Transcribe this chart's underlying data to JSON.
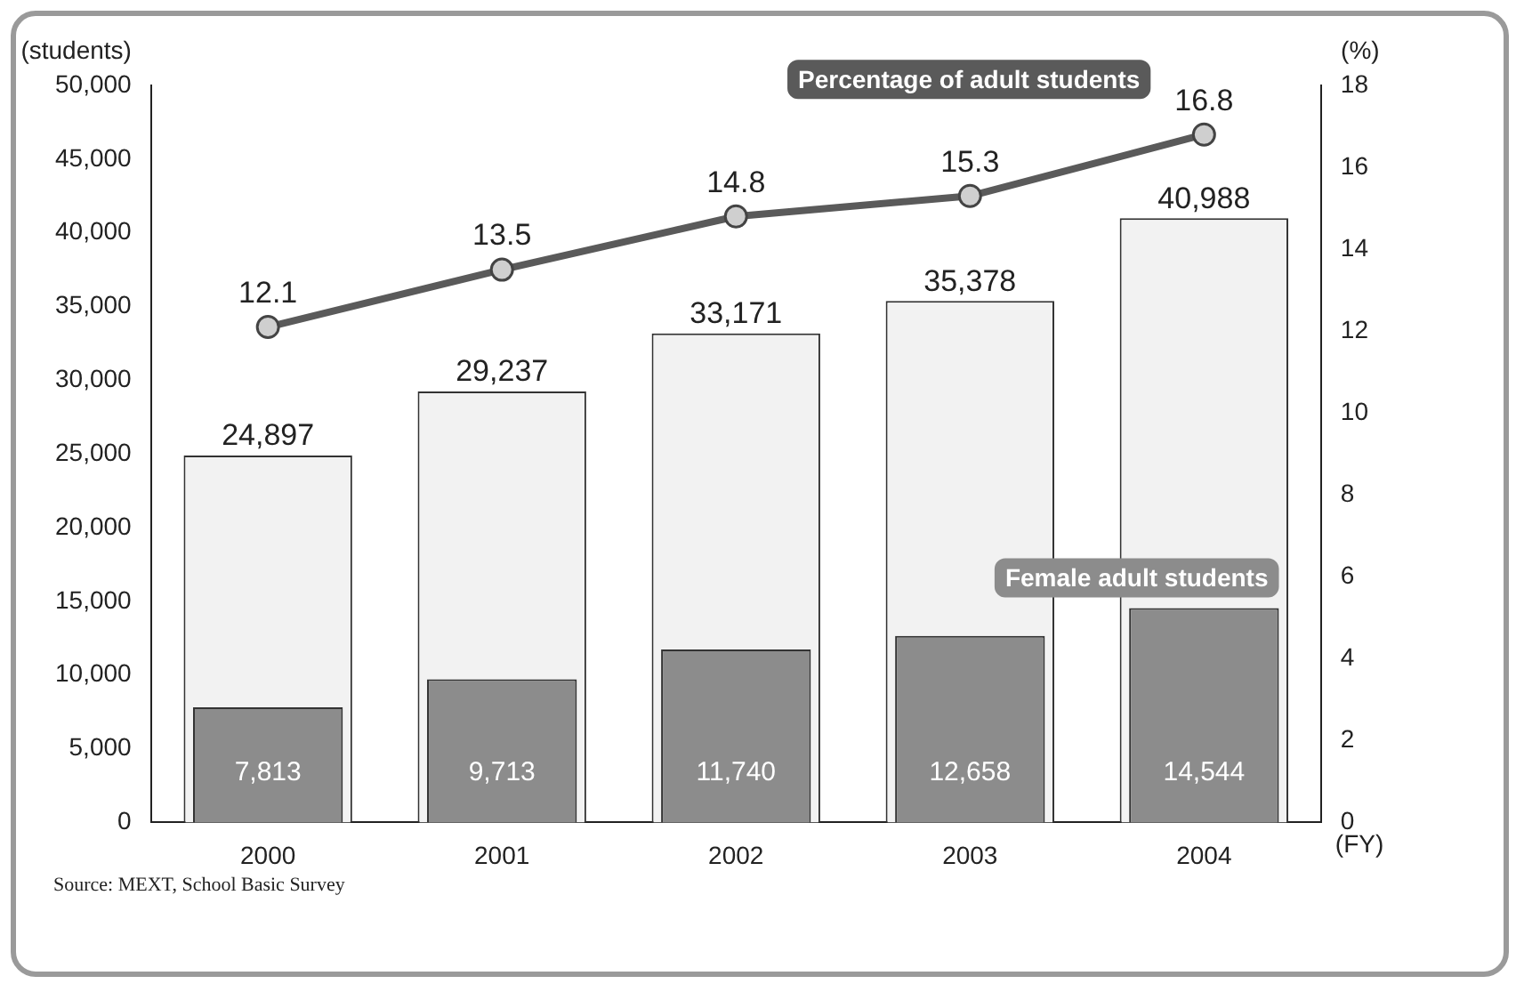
{
  "chart_data": {
    "type": "bar",
    "categories": [
      "2000",
      "2001",
      "2002",
      "2003",
      "2004"
    ],
    "series": [
      {
        "color": "#f2f2f2",
        "values": [
          24897,
          29237,
          33171,
          35378,
          40988
        ],
        "value_labels": [
          "24,897",
          "29,237",
          "33,171",
          "35,378",
          "40,988"
        ]
      },
      {
        "name": "Female adult students",
        "color": "#8c8c8c",
        "values": [
          7813,
          9713,
          11740,
          12658,
          14544
        ],
        "value_labels": [
          "7,813",
          "9,713",
          "11,740",
          "12,658",
          "14,544"
        ]
      },
      {
        "type": "line",
        "name": "Percentage of adult students",
        "color": "#5a5a5a",
        "axis": "y2",
        "values": [
          12.1,
          13.5,
          14.8,
          15.3,
          16.8
        ]
      }
    ],
    "ylabel": "(students)",
    "y2label": "(%)",
    "xlabel": "(FY)",
    "ylim": [
      0,
      50000
    ],
    "yticks": [
      0,
      {
        "value": 5000,
        "label": "5,000"
      },
      {
        "value": 10000,
        "label": "10,000"
      },
      {
        "value": 15000,
        "label": "15,000"
      },
      {
        "value": 20000,
        "label": "20,000"
      },
      {
        "value": 25000,
        "label": "25,000"
      },
      {
        "value": 30000,
        "label": "30,000"
      },
      {
        "value": 35000,
        "label": "35,000"
      },
      {
        "value": 40000,
        "label": "40,000"
      },
      {
        "value": 45000,
        "label": "45,000"
      },
      {
        "value": 50000,
        "label": "50,000"
      }
    ],
    "y2lim": [
      0,
      18
    ],
    "y2ticks": [
      0,
      2,
      4,
      6,
      8,
      10,
      12,
      14,
      16,
      18
    ],
    "data_labels": true,
    "grid": false,
    "legend": false,
    "marker": "circle",
    "line_style": "solid",
    "annotations": [
      "Source: MEXT, School Basic Survey"
    ]
  }
}
